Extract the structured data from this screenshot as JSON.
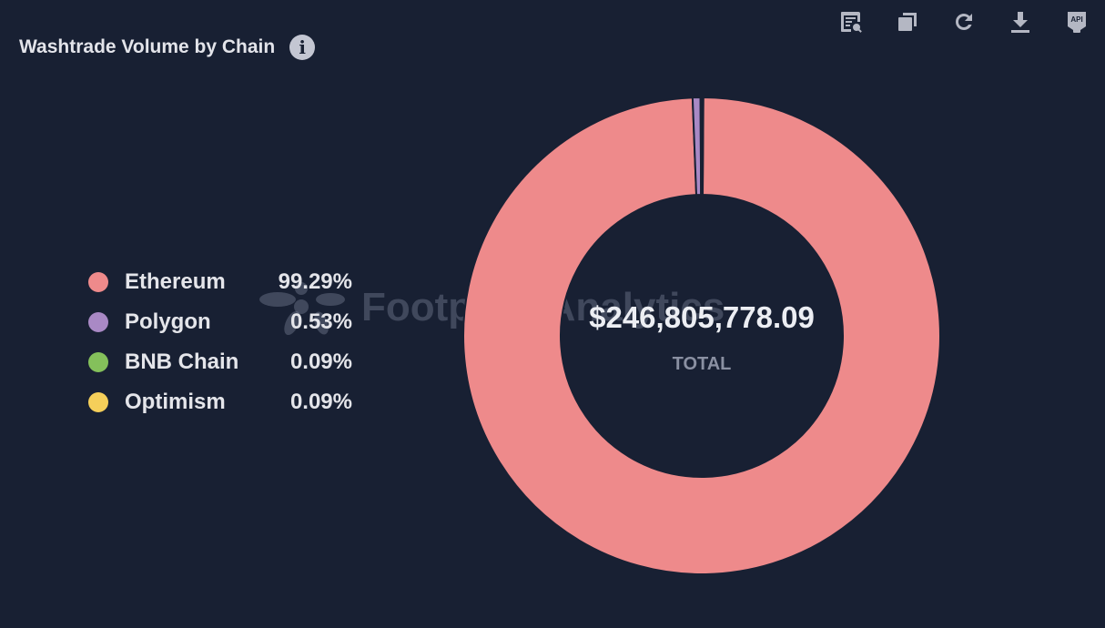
{
  "header": {
    "title": "Washtrade Volume by Chain",
    "info_icon": "info-icon"
  },
  "toolbar": [
    {
      "name": "view-query-icon"
    },
    {
      "name": "duplicate-icon"
    },
    {
      "name": "refresh-icon"
    },
    {
      "name": "download-icon"
    },
    {
      "name": "api-icon",
      "label": "API"
    }
  ],
  "watermark": "Footprint Analytics",
  "chart_data": {
    "type": "pie",
    "variant": "donut",
    "title": "Washtrade Volume by Chain",
    "total_value": "$246,805,778.09",
    "total_label": "TOTAL",
    "legend_placement": "left",
    "slices": [
      {
        "label": "Ethereum",
        "percent": 99.29,
        "percent_text": "99.29%",
        "color": "#ee8a8b"
      },
      {
        "label": "Polygon",
        "percent": 0.53,
        "percent_text": "0.53%",
        "color": "#a989c5"
      },
      {
        "label": "BNB Chain",
        "percent": 0.09,
        "percent_text": "0.09%",
        "color": "#84c05b"
      },
      {
        "label": "Optimism",
        "percent": 0.09,
        "percent_text": "0.09%",
        "color": "#f5cf5a"
      }
    ]
  }
}
